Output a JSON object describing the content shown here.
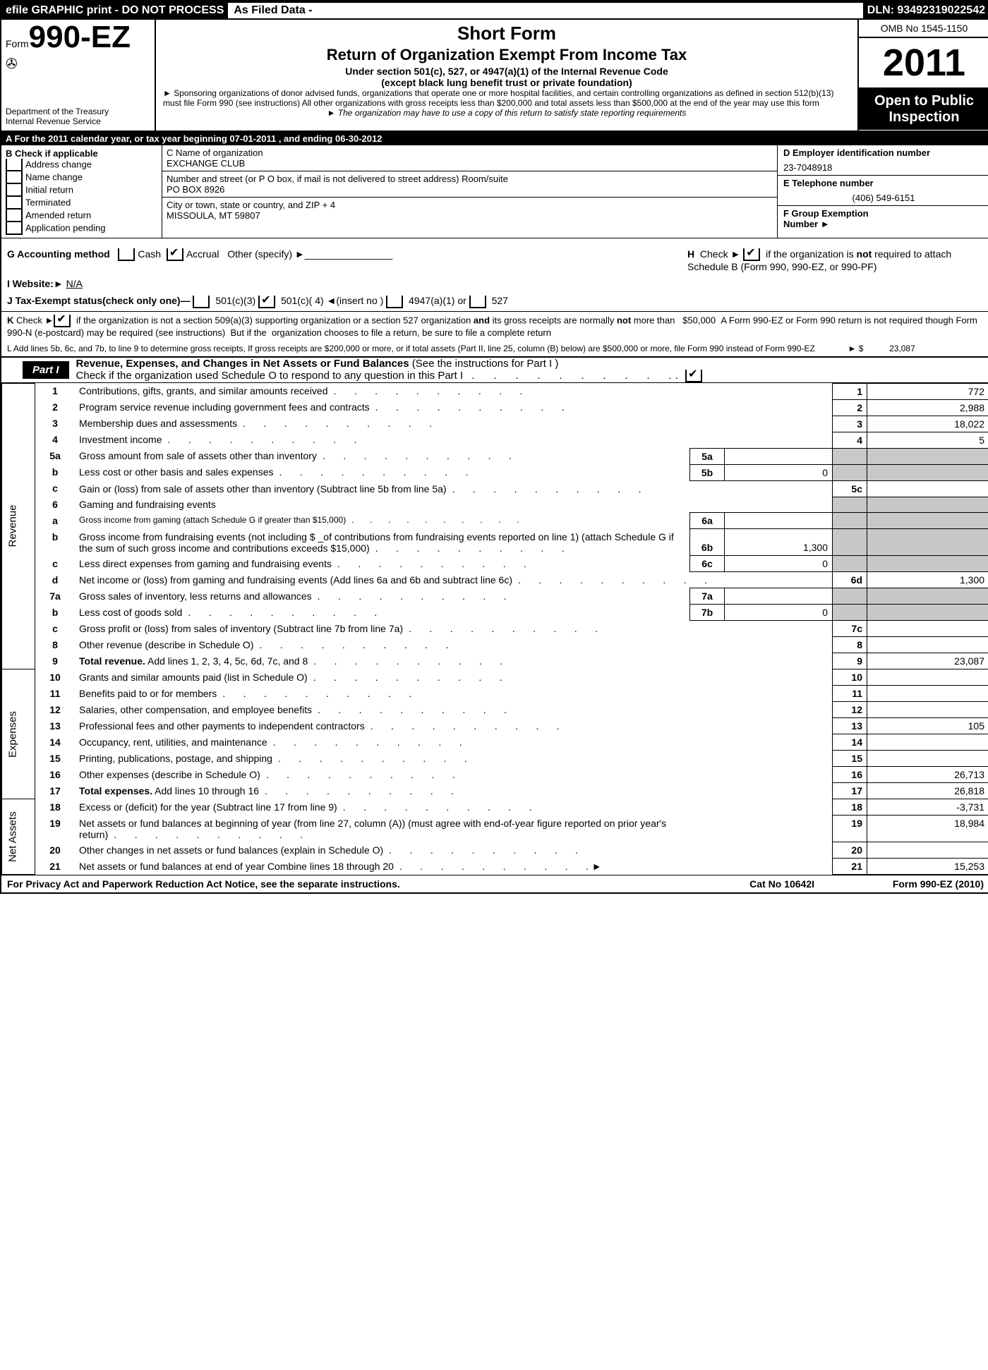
{
  "top": {
    "efile": "efile GRAPHIC print - DO NOT PROCESS",
    "asfiled": "As Filed Data -",
    "dln": "DLN: 93492319022542"
  },
  "header": {
    "form_prefix": "Form",
    "form_num": "990-EZ",
    "dept1": "Department of the Treasury",
    "dept2": "Internal Revenue Service",
    "title1": "Short Form",
    "title2": "Return of Organization Exempt From Income Tax",
    "sub1": "Under section 501(c), 527, or 4947(a)(1) of the Internal Revenue Code",
    "sub2": "(except black lung benefit trust or private foundation)",
    "note1": "► Sponsoring organizations of donor advised funds, organizations that operate one or more hospital facilities, and certain controlling organizations as defined in section 512(b)(13) must file Form 990 (see instructions) All other organizations with gross receipts less than $200,000 and total assets less than $500,000 at the end of the year may use this form",
    "note2": "► The organization may have to use a copy of this return to satisfy state reporting requirements",
    "omb": "OMB No 1545-1150",
    "year": "2011",
    "inspect1": "Open to Public",
    "inspect2": "Inspection"
  },
  "rowA": "A  For the 2011 calendar year, or tax year beginning 07-01-2011              , and ending 06-30-2012",
  "colB": {
    "title": "B  Check if applicable",
    "items": [
      "Address change",
      "Name change",
      "Initial return",
      "Terminated",
      "Amended return",
      "Application pending"
    ]
  },
  "colC": {
    "c_label": "C Name of organization",
    "c_val": "EXCHANGE CLUB",
    "addr_label": "Number and street (or P  O  box, if mail is not delivered to street address) Room/suite",
    "addr_val": "PO BOX 8926",
    "city_label": "City or town, state or country, and ZIP + 4",
    "city_val": "MISSOULA, MT  59807"
  },
  "colD": {
    "d_label": "D Employer identification number",
    "d_val": "23-7048918",
    "e_label": "E Telephone number",
    "e_val": "(406) 549-6151",
    "f_label": "F Group Exemption",
    "f_label2": "Number         ►"
  },
  "lineG": "G Accounting method",
  "g_cash": "Cash",
  "g_accrual": "Accrual",
  "g_other": "Other (specify) ►",
  "lineH": "Check ►         if the organization is not required to attach Schedule B (Form 990, 990-EZ, or 990-PF)",
  "lineH_label": "H",
  "lineI": "I Website:►",
  "lineI_val": "N/A",
  "lineJ": "J Tax-Exempt status(check only one)—",
  "j_opts": [
    "501(c)(3)",
    "501(c)( 4) ◄(insert no )",
    "4947(a)(1) or",
    "527"
  ],
  "lineK": "K Check ►       if the organization is not a section 509(a)(3) supporting organization or a section 527 organization and its gross receipts are normally not more than   $50,000  A Form 990-EZ or Form 990 return is not required though Form 990-N (e-postcard) may be required (see instructions)  But if the organization chooses to file a return, be sure to file a complete return",
  "lineL": "L Add lines 5b, 6c, and 7b, to line 9 to determine gross receipts, If gross receipts are $200,000 or more, or if total assets (Part II, line 25, column (B) below) are $500,000 or more,  file Form 990 instead of Form 990-EZ",
  "lineL_amt_label": "► $",
  "lineL_amt": "23,087",
  "part1": {
    "label": "Part I",
    "title": "Revenue, Expenses, and Changes in Net Assets or Fund Balances (See the instructions for Part I )",
    "check": "Check if the organization used Schedule O to respond to any question in this Part I"
  },
  "sides": {
    "rev": "Revenue",
    "exp": "Expenses",
    "net": "Net Assets"
  },
  "rows": [
    {
      "n": "1",
      "desc": "Contributions, gifts, grants, and similar amounts received",
      "rn": "1",
      "val": "772"
    },
    {
      "n": "2",
      "desc": "Program service revenue including government fees and contracts",
      "rn": "2",
      "val": "2,988"
    },
    {
      "n": "3",
      "desc": "Membership dues and assessments",
      "rn": "3",
      "val": "18,022"
    },
    {
      "n": "4",
      "desc": "Investment income",
      "rn": "4",
      "val": "5"
    },
    {
      "n": "5a",
      "desc": "Gross amount from sale of assets other than inventory",
      "sn": "5a",
      "sv": "",
      "grey": true
    },
    {
      "n": "b",
      "desc": "Less  cost or other basis and sales expenses",
      "sn": "5b",
      "sv": "0",
      "grey": true
    },
    {
      "n": "c",
      "desc": "Gain or (loss) from sale of assets other than inventory (Subtract line 5b from line 5a)",
      "rn": "5c",
      "val": ""
    },
    {
      "n": "6",
      "desc": "Gaming and fundraising events",
      "grey": true,
      "noval": true
    },
    {
      "n": "a",
      "desc": "Gross income from gaming (attach Schedule G if greater than $15,000)",
      "sn": "6a",
      "sv": "",
      "grey": true,
      "small": true
    },
    {
      "n": "b",
      "desc": "Gross income from fundraising events (not including $ _of contributions from fundraising events reported on line 1) (attach Schedule G if the sum of such gross income and contributions exceeds $15,000)",
      "sn": "6b",
      "sv": "1,300",
      "grey": true
    },
    {
      "n": "c",
      "desc": "Less  direct expenses from gaming and fundraising events",
      "sn": "6c",
      "sv": "0",
      "grey": true
    },
    {
      "n": "d",
      "desc": "Net income or (loss) from gaming and fundraising events (Add lines 6a and 6b and subtract line 6c)",
      "rn": "6d",
      "val": "1,300"
    },
    {
      "n": "7a",
      "desc": "Gross sales of inventory, less returns and allowances",
      "sn": "7a",
      "sv": "",
      "grey": true
    },
    {
      "n": "b",
      "desc": "Less  cost of goods sold",
      "sn": "7b",
      "sv": "0",
      "grey": true
    },
    {
      "n": "c",
      "desc": "Gross profit or (loss) from sales of inventory (Subtract line 7b from line 7a)",
      "rn": "7c",
      "val": ""
    },
    {
      "n": "8",
      "desc": "Other revenue (describe in Schedule O)",
      "rn": "8",
      "val": ""
    },
    {
      "n": "9",
      "desc": "Total revenue. Add lines 1, 2, 3, 4, 5c, 6d, 7c, and 8",
      "rn": "9",
      "val": "23,087",
      "bold": true
    }
  ],
  "exp_rows": [
    {
      "n": "10",
      "desc": "Grants and similar amounts paid (list in Schedule O)",
      "rn": "10",
      "val": ""
    },
    {
      "n": "11",
      "desc": "Benefits paid to or for members",
      "rn": "11",
      "val": ""
    },
    {
      "n": "12",
      "desc": "Salaries, other compensation, and employee benefits",
      "rn": "12",
      "val": ""
    },
    {
      "n": "13",
      "desc": "Professional fees and other payments to independent contractors",
      "rn": "13",
      "val": "105"
    },
    {
      "n": "14",
      "desc": "Occupancy, rent, utilities, and maintenance",
      "rn": "14",
      "val": ""
    },
    {
      "n": "15",
      "desc": "Printing, publications, postage, and shipping",
      "rn": "15",
      "val": ""
    },
    {
      "n": "16",
      "desc": "Other expenses (describe in Schedule O)",
      "rn": "16",
      "val": "26,713"
    },
    {
      "n": "17",
      "desc": "Total expenses. Add lines 10 through 16",
      "rn": "17",
      "val": "26,818",
      "bold": true
    }
  ],
  "net_rows": [
    {
      "n": "18",
      "desc": "Excess or (deficit) for the year (Subtract line 17 from line 9)",
      "rn": "18",
      "val": "-3,731"
    },
    {
      "n": "19",
      "desc": "Net assets or fund balances at beginning of year (from line 27, column (A)) (must agree with end-of-year figure reported on prior year's return)",
      "rn": "19",
      "val": "18,984"
    },
    {
      "n": "20",
      "desc": "Other changes in net assets or fund balances (explain in Schedule O)",
      "rn": "20",
      "val": ""
    },
    {
      "n": "21",
      "desc": "Net assets or fund balances at end of year  Combine lines 18 through 20",
      "rn": "21",
      "val": "15,253",
      "arrow": true
    }
  ],
  "footer": {
    "left": "For Privacy Act and Paperwork Reduction Act Notice, see the separate instructions.",
    "mid": "Cat No 10642I",
    "right": "Form 990-EZ (2010)"
  }
}
